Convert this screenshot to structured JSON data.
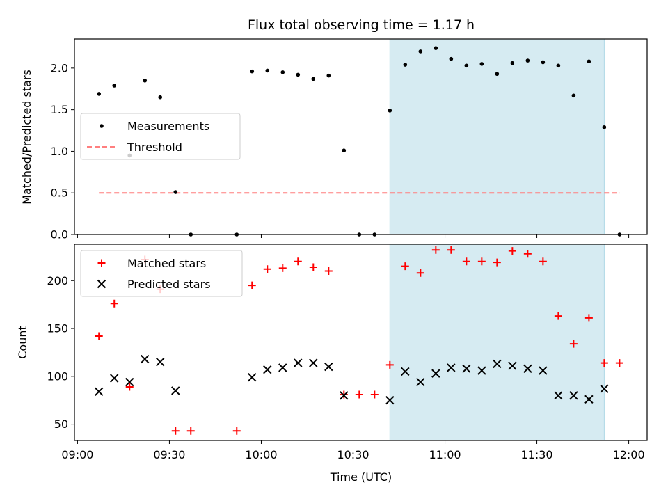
{
  "title": "Flux total observing time = 1.17 h",
  "xlabel": "Time (UTC)",
  "xticks": [
    "09:00",
    "09:30",
    "10:00",
    "10:30",
    "11:00",
    "11:30",
    "12:00"
  ],
  "colors": {
    "measurements": "#000000",
    "threshold": "#ff7f7f",
    "matched": "#ff0000",
    "predicted": "#000000",
    "observing_window": "#add8e6"
  },
  "chart_data": [
    {
      "type": "scatter",
      "ylabel": "Matched/Predicted stars",
      "xlim": [
        "08:59",
        "12:06"
      ],
      "ylim": [
        0,
        2.35
      ],
      "yticks": [
        "0.0",
        "0.5",
        "1.0",
        "1.5",
        "2.0"
      ],
      "legend": {
        "placement": "center-left",
        "entries": [
          "Measurements",
          "Threshold"
        ]
      },
      "shaded_span": [
        "10:42",
        "11:52"
      ],
      "threshold": {
        "name": "Threshold",
        "y": 0.5,
        "x_start": "09:07",
        "x_end": "11:57"
      },
      "series": [
        {
          "name": "Measurements",
          "points": [
            [
              "09:07",
              1.69
            ],
            [
              "09:12",
              1.79
            ],
            [
              "09:17",
              0.95
            ],
            [
              "09:22",
              1.85
            ],
            [
              "09:27",
              1.65
            ],
            [
              "09:32",
              0.51
            ],
            [
              "09:37",
              0.0
            ],
            [
              "09:52",
              0.0
            ],
            [
              "09:57",
              1.96
            ],
            [
              "10:02",
              1.97
            ],
            [
              "10:07",
              1.95
            ],
            [
              "10:12",
              1.92
            ],
            [
              "10:17",
              1.87
            ],
            [
              "10:22",
              1.91
            ],
            [
              "10:27",
              1.01
            ],
            [
              "10:32",
              0.0
            ],
            [
              "10:37",
              0.0
            ],
            [
              "10:42",
              1.49
            ],
            [
              "10:47",
              2.04
            ],
            [
              "10:52",
              2.2
            ],
            [
              "10:57",
              2.24
            ],
            [
              "11:02",
              2.11
            ],
            [
              "11:07",
              2.03
            ],
            [
              "11:12",
              2.05
            ],
            [
              "11:17",
              1.93
            ],
            [
              "11:22",
              2.06
            ],
            [
              "11:27",
              2.09
            ],
            [
              "11:32",
              2.07
            ],
            [
              "11:37",
              2.03
            ],
            [
              "11:42",
              1.67
            ],
            [
              "11:47",
              2.08
            ],
            [
              "11:52",
              1.29
            ],
            [
              "11:57",
              0.0
            ]
          ]
        }
      ]
    },
    {
      "type": "scatter",
      "ylabel": "Count",
      "xlim": [
        "08:59",
        "12:06"
      ],
      "ylim": [
        33,
        238
      ],
      "yticks": [
        "50",
        "100",
        "150",
        "200"
      ],
      "legend": {
        "placement": "top-left",
        "entries": [
          "Matched stars",
          "Predicted stars"
        ]
      },
      "shaded_span": [
        "10:42",
        "11:52"
      ],
      "series": [
        {
          "name": "Matched stars",
          "marker": "+",
          "points": [
            [
              "09:07",
              142
            ],
            [
              "09:12",
              176
            ],
            [
              "09:17",
              89
            ],
            [
              "09:22",
              222
            ],
            [
              "09:27",
              191
            ],
            [
              "09:32",
              43
            ],
            [
              "09:37",
              43
            ],
            [
              "09:52",
              43
            ],
            [
              "09:57",
              195
            ],
            [
              "10:02",
              212
            ],
            [
              "10:07",
              213
            ],
            [
              "10:12",
              220
            ],
            [
              "10:17",
              214
            ],
            [
              "10:22",
              210
            ],
            [
              "10:27",
              81
            ],
            [
              "10:32",
              81
            ],
            [
              "10:37",
              81
            ],
            [
              "10:42",
              112
            ],
            [
              "10:47",
              215
            ],
            [
              "10:52",
              208
            ],
            [
              "10:57",
              232
            ],
            [
              "11:02",
              232
            ],
            [
              "11:07",
              220
            ],
            [
              "11:12",
              220
            ],
            [
              "11:17",
              219
            ],
            [
              "11:22",
              231
            ],
            [
              "11:27",
              228
            ],
            [
              "11:32",
              220
            ],
            [
              "11:37",
              163
            ],
            [
              "11:42",
              134
            ],
            [
              "11:47",
              161
            ],
            [
              "11:52",
              114
            ],
            [
              "11:57",
              114
            ]
          ]
        },
        {
          "name": "Predicted stars",
          "marker": "x",
          "points": [
            [
              "09:07",
              84
            ],
            [
              "09:12",
              98
            ],
            [
              "09:17",
              94
            ],
            [
              "09:22",
              118
            ],
            [
              "09:27",
              115
            ],
            [
              "09:32",
              85
            ],
            [
              "09:57",
              99
            ],
            [
              "10:02",
              107
            ],
            [
              "10:07",
              109
            ],
            [
              "10:12",
              114
            ],
            [
              "10:17",
              114
            ],
            [
              "10:22",
              110
            ],
            [
              "10:27",
              80
            ],
            [
              "10:42",
              75
            ],
            [
              "10:47",
              105
            ],
            [
              "10:52",
              94
            ],
            [
              "10:57",
              103
            ],
            [
              "11:02",
              109
            ],
            [
              "11:07",
              108
            ],
            [
              "11:12",
              106
            ],
            [
              "11:17",
              113
            ],
            [
              "11:22",
              111
            ],
            [
              "11:27",
              108
            ],
            [
              "11:32",
              106
            ],
            [
              "11:37",
              80
            ],
            [
              "11:42",
              80
            ],
            [
              "11:47",
              76
            ],
            [
              "11:52",
              87
            ]
          ]
        }
      ]
    }
  ]
}
